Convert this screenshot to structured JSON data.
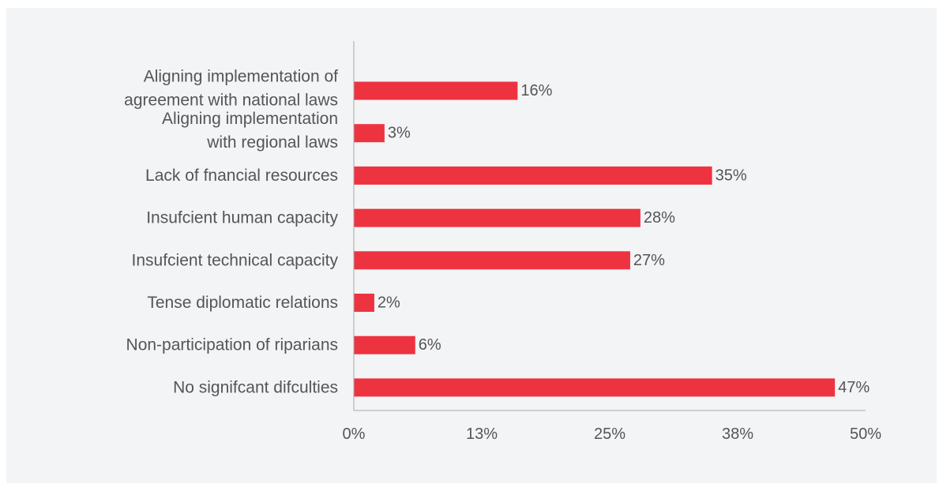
{
  "chart_data": {
    "type": "bar",
    "orientation": "horizontal",
    "categories": [
      [
        "Aligning implementation of",
        "agreement with national laws"
      ],
      [
        "Aligning implementation",
        "with regional laws"
      ],
      [
        "Lack of fnancial resources"
      ],
      [
        "Insufcient human capacity"
      ],
      [
        "Insufcient technical capacity"
      ],
      [
        "Tense diplomatic relations"
      ],
      [
        "Non-participation of riparians"
      ],
      [
        "No signifcant difculties"
      ]
    ],
    "values": [
      16,
      3,
      35,
      28,
      27,
      2,
      6,
      47
    ],
    "value_labels": [
      "16%",
      "3%",
      "35%",
      "28%",
      "27%",
      "2%",
      "6%",
      "47%"
    ],
    "xlim": [
      0,
      50
    ],
    "x_ticks": [
      0,
      12.5,
      25,
      37.5,
      50
    ],
    "x_tick_labels": [
      "0%",
      "13%",
      "25%",
      "38%",
      "50%"
    ],
    "bar_color": "#ee3340",
    "background_color": "#f3f4f6",
    "grid": false,
    "legend": false
  }
}
